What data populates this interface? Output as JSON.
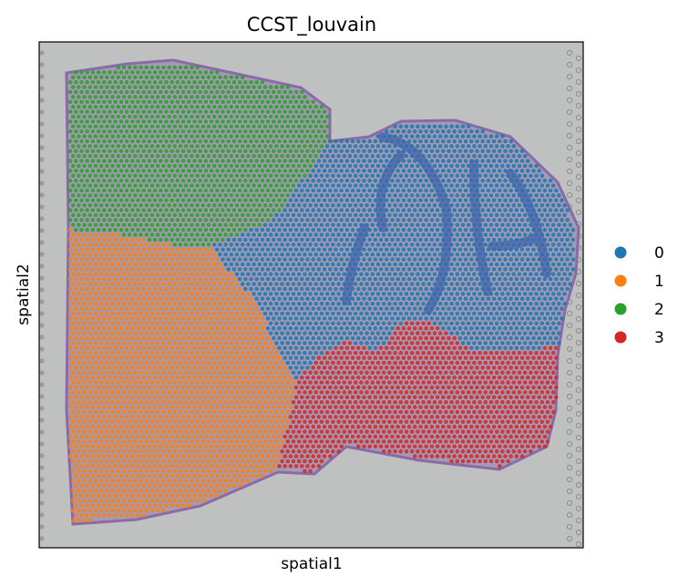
{
  "chart_data": {
    "type": "scatter",
    "title": "CCST_louvain",
    "xlabel": "spatial1",
    "ylabel": "spatial2",
    "ticks_visible": false,
    "grid": false,
    "legend_position": "right",
    "series": [
      {
        "name": "0",
        "color": "#1f77b4"
      },
      {
        "name": "1",
        "color": "#ff7f0e"
      },
      {
        "name": "2",
        "color": "#2ca02c"
      },
      {
        "name": "3",
        "color": "#d62728"
      }
    ]
  }
}
